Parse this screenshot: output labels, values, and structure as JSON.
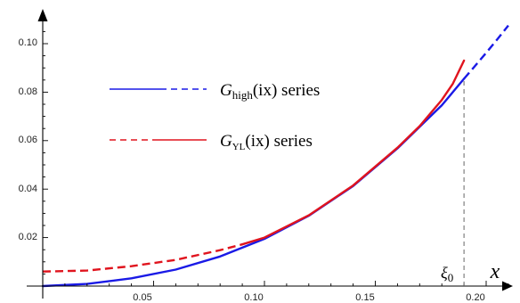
{
  "chart_data": {
    "type": "line",
    "title": "",
    "xlabel": "x",
    "ylabel": "",
    "xlim": [
      0,
      0.212
    ],
    "ylim": [
      0,
      0.108
    ],
    "x_ticks": [
      "0.05",
      "0.10",
      "0.15",
      "0.20"
    ],
    "y_ticks": [
      "0.02",
      "0.04",
      "0.06",
      "0.08",
      "0.10"
    ],
    "grid": false,
    "legend_position": "upper-left",
    "legend": [
      {
        "symbol": "G",
        "subscript": "high",
        "argument": "(ix)",
        "suffix": " series"
      },
      {
        "symbol": "G",
        "subscript": "YL",
        "argument": "(ix)",
        "suffix": " series"
      }
    ],
    "annotations": [
      {
        "label": "ξ",
        "subscript": "0",
        "x": 0.19
      }
    ],
    "series": [
      {
        "color": "#1a1ae6",
        "solid": {
          "x": [
            0.0,
            0.02,
            0.04,
            0.06,
            0.08,
            0.1,
            0.12,
            0.14,
            0.16,
            0.18,
            0.19
          ],
          "y": [
            0.0,
            0.0009,
            0.0032,
            0.0068,
            0.0122,
            0.0195,
            0.029,
            0.0413,
            0.0568,
            0.0746,
            0.0855
          ]
        },
        "dashed": {
          "x": [
            0.19,
            0.195,
            0.2,
            0.205,
            0.21
          ],
          "y": [
            0.0855,
            0.0908,
            0.0962,
            0.1018,
            0.1075
          ]
        }
      },
      {
        "color": "#e0141e",
        "dashed": {
          "x": [
            0.0,
            0.02,
            0.04,
            0.06,
            0.08,
            0.09
          ],
          "y": [
            0.006,
            0.0064,
            0.0082,
            0.0108,
            0.0148,
            0.0172
          ]
        },
        "solid": {
          "x": [
            0.09,
            0.1,
            0.12,
            0.14,
            0.16,
            0.17,
            0.18,
            0.185,
            0.19
          ],
          "y": [
            0.0172,
            0.02,
            0.0292,
            0.0415,
            0.0571,
            0.066,
            0.0768,
            0.0835,
            0.093
          ]
        }
      }
    ]
  }
}
